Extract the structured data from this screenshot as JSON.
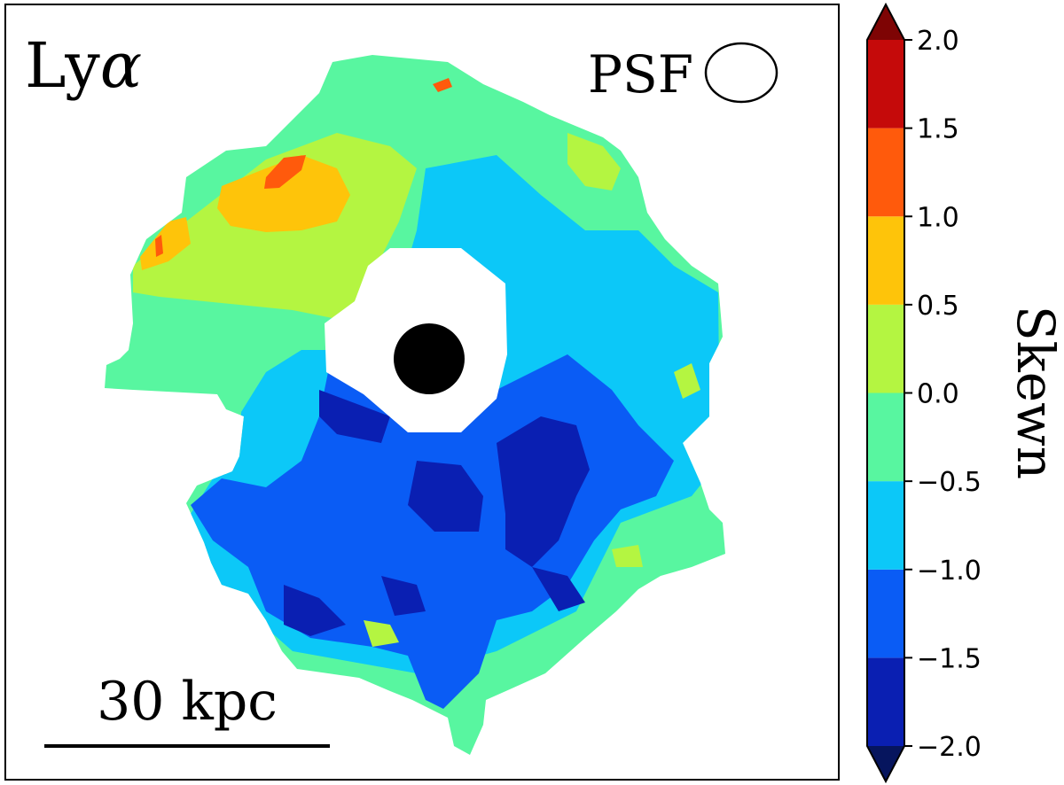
{
  "chart_data": {
    "type": "heatmap",
    "title": "Lyα",
    "title_main": "Ly",
    "title_symbol": "α",
    "psf_label": "PSF",
    "scale_bar_label": "30 kpc",
    "colorbar": {
      "label": "Skewn",
      "range": [
        -2.0,
        2.0
      ],
      "extend": "both",
      "tick_values": [
        -2.0,
        -1.5,
        -1.0,
        -0.5,
        0.0,
        0.5,
        1.0,
        1.5,
        2.0
      ],
      "tick_labels": [
        "−2.0",
        "−1.5",
        "−1.0",
        "−0.5",
        "0.0",
        "0.5",
        "1.0",
        "1.5",
        "2.0"
      ],
      "levels": [
        {
          "lo": -2.0,
          "hi": -1.5,
          "color": "#0a1fb2"
        },
        {
          "lo": -1.5,
          "hi": -1.0,
          "color": "#0a5cf5"
        },
        {
          "lo": -1.0,
          "hi": -0.5,
          "color": "#0cc8f8"
        },
        {
          "lo": -0.5,
          "hi": 0.0,
          "color": "#58f6a0"
        },
        {
          "lo": 0.0,
          "hi": 0.5,
          "color": "#b4f541"
        },
        {
          "lo": 0.5,
          "hi": 1.0,
          "color": "#fec40a"
        },
        {
          "lo": 1.0,
          "hi": 1.5,
          "color": "#ff5a0c"
        },
        {
          "lo": 1.5,
          "hi": 2.0,
          "color": "#c50a0a"
        }
      ],
      "under_color": "#06155e",
      "over_color": "#7e0404"
    },
    "map_summary": {
      "upper_left": 0.25,
      "upper_right": -0.5,
      "center_masked": true,
      "lower_half": -1.25,
      "lower_center": -1.75
    }
  }
}
